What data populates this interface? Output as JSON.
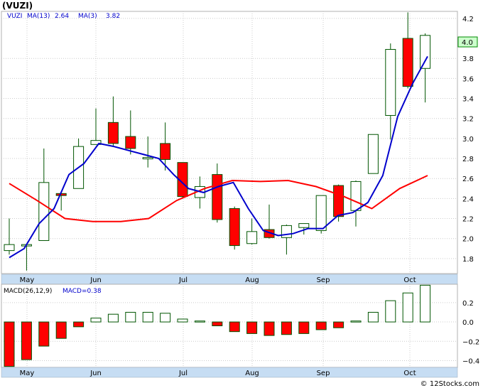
{
  "title": "(VUZI)",
  "legend": {
    "symbol": "VUZI",
    "ma13_label": "MA(13)",
    "ma13_value": "2.64",
    "ma3_label": "MA(3)",
    "ma3_value": "3.82"
  },
  "macd_legend": {
    "params": "MACD(26,12,9)",
    "value": "MACD=0.38"
  },
  "last_price_label": "4.0",
  "watermark": "© 12Stocks.com",
  "colors": {
    "up": "#ffffff",
    "down": "#ff0000",
    "candle_border": "#005500",
    "ma13": "#ff0000",
    "ma3": "#0000cc",
    "legend_text": "#0000cc",
    "axis_band": "#c6ddf3",
    "grid": "#cccccc",
    "last_price_box": "#ccffcc"
  },
  "chart_data": [
    {
      "type": "candlestick",
      "months": [
        "May",
        "Jun",
        "Jul",
        "Aug",
        "Sep",
        "Oct"
      ],
      "y_ticks": [
        1.8,
        2.0,
        2.2,
        2.4,
        2.6,
        2.8,
        3.0,
        3.2,
        3.4,
        3.6,
        3.8,
        4.2
      ],
      "ylim": [
        1.65,
        4.27
      ],
      "grid": true,
      "candles": [
        {
          "o": 1.88,
          "h": 2.2,
          "l": 1.84,
          "c": 1.94
        },
        {
          "o": 1.93,
          "h": 1.95,
          "l": 1.68,
          "c": 1.94
        },
        {
          "o": 1.98,
          "h": 2.9,
          "l": 1.98,
          "c": 2.56
        },
        {
          "o": 2.45,
          "h": 2.45,
          "l": 2.28,
          "c": 2.43
        },
        {
          "o": 2.5,
          "h": 3.0,
          "l": 2.5,
          "c": 2.92
        },
        {
          "o": 2.94,
          "h": 3.3,
          "l": 2.94,
          "c": 2.98
        },
        {
          "o": 3.16,
          "h": 3.42,
          "l": 2.92,
          "c": 2.95
        },
        {
          "o": 3.02,
          "h": 3.28,
          "l": 2.84,
          "c": 2.9
        },
        {
          "o": 2.8,
          "h": 3.02,
          "l": 2.71,
          "c": 2.81
        },
        {
          "o": 2.95,
          "h": 3.16,
          "l": 2.68,
          "c": 2.79
        },
        {
          "o": 2.76,
          "h": 2.76,
          "l": 2.4,
          "c": 2.42
        },
        {
          "o": 2.41,
          "h": 2.62,
          "l": 2.3,
          "c": 2.52
        },
        {
          "o": 2.64,
          "h": 2.75,
          "l": 2.16,
          "c": 2.19
        },
        {
          "o": 2.3,
          "h": 2.32,
          "l": 1.89,
          "c": 1.93
        },
        {
          "o": 1.95,
          "h": 2.2,
          "l": 1.94,
          "c": 2.07
        },
        {
          "o": 2.09,
          "h": 2.34,
          "l": 2.0,
          "c": 2.01
        },
        {
          "o": 2.01,
          "h": 2.14,
          "l": 1.84,
          "c": 2.13
        },
        {
          "o": 2.11,
          "h": 2.14,
          "l": 2.04,
          "c": 2.15
        },
        {
          "o": 2.08,
          "h": 2.43,
          "l": 2.05,
          "c": 2.43
        },
        {
          "o": 2.53,
          "h": 2.54,
          "l": 2.17,
          "c": 2.22
        },
        {
          "o": 2.28,
          "h": 2.58,
          "l": 2.12,
          "c": 2.57
        },
        {
          "o": 2.65,
          "h": 3.04,
          "l": 2.65,
          "c": 3.04
        },
        {
          "o": 3.23,
          "h": 3.95,
          "l": 2.99,
          "c": 3.89
        },
        {
          "o": 4.0,
          "h": 4.26,
          "l": 3.5,
          "c": 3.52
        },
        {
          "o": 3.7,
          "h": 4.05,
          "l": 3.36,
          "c": 4.03
        }
      ],
      "series": [
        {
          "name": "MA(13)",
          "values": [
            2.55,
            2.38,
            2.2,
            2.17,
            2.17,
            2.2,
            2.38,
            2.5,
            2.58,
            2.57,
            2.58,
            2.52,
            2.42,
            2.3,
            2.5,
            2.63
          ]
        },
        {
          "name": "MA(3)",
          "values": [
            1.81,
            1.9,
            2.15,
            2.3,
            2.64,
            2.75,
            2.95,
            2.92,
            2.88,
            2.84,
            2.8,
            2.64,
            2.5,
            2.46,
            2.52,
            2.56,
            2.3,
            2.08,
            2.03,
            2.05,
            2.1,
            2.1,
            2.23,
            2.26,
            2.36,
            2.63,
            3.22,
            3.55,
            3.82
          ]
        }
      ]
    },
    {
      "type": "bar",
      "title": "MACD(26,12,9)",
      "y_ticks": [
        0.2,
        0.0,
        -0.2,
        -0.4
      ],
      "ylim": [
        -0.47,
        0.39
      ],
      "grid": true,
      "values": [
        -0.46,
        -0.39,
        -0.25,
        -0.17,
        -0.05,
        0.04,
        0.08,
        0.1,
        0.1,
        0.09,
        0.03,
        0.01,
        -0.04,
        -0.1,
        -0.12,
        -0.14,
        -0.13,
        -0.12,
        -0.08,
        -0.06,
        0.01,
        0.1,
        0.22,
        0.3,
        0.38
      ]
    }
  ]
}
